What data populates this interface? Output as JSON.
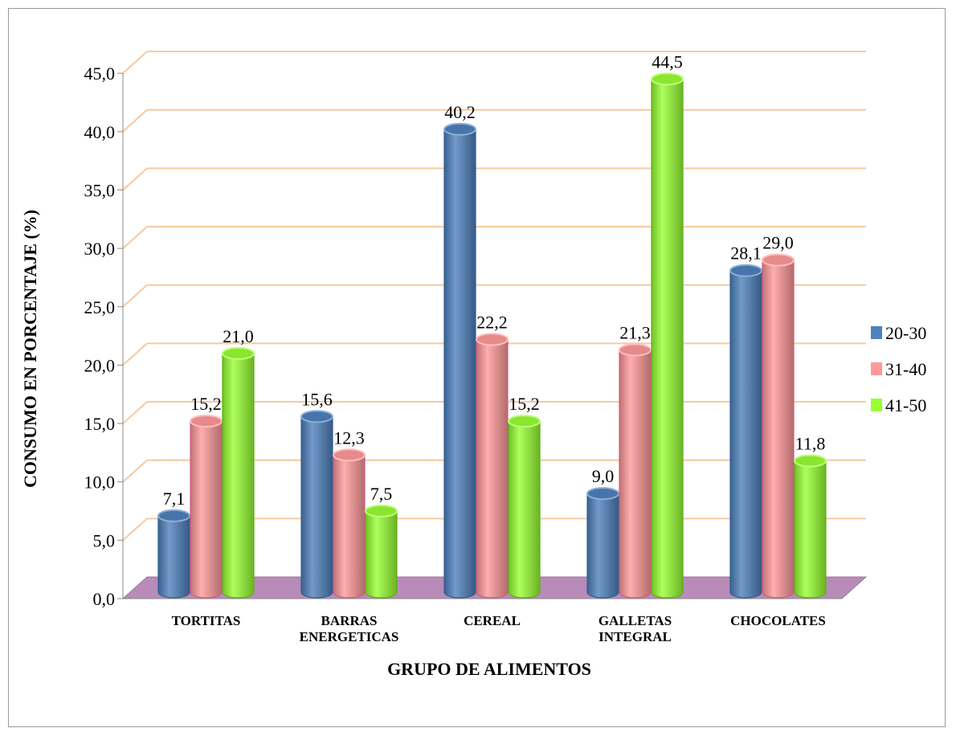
{
  "chart_data": {
    "type": "bar",
    "title": "",
    "xlabel": "GRUPO DE ALIMENTOS",
    "ylabel": "CONSUMO EN PORCENTAJE (%)",
    "ylim": [
      0,
      45
    ],
    "yticks": [
      "0,0",
      "5,0",
      "10,0",
      "15,0",
      "20,0",
      "25,0",
      "30,0",
      "35,0",
      "40,0",
      "45,0"
    ],
    "grid": true,
    "legend_position": "right",
    "categories": [
      [
        "TORTITAS"
      ],
      [
        "BARRAS",
        "ENERGETICAS"
      ],
      [
        "CEREAL"
      ],
      [
        "GALLETAS",
        "INTEGRAL"
      ],
      [
        "CHOCOLATES"
      ]
    ],
    "series": [
      {
        "name": "20-30",
        "color": "#4f81bd",
        "values": [
          7.1,
          15.6,
          40.2,
          9.0,
          28.1
        ],
        "labels": [
          "7,1",
          "15,6",
          "40,2",
          "9,0",
          "28,1"
        ]
      },
      {
        "name": "31-40",
        "color": "#ff9999",
        "values": [
          15.2,
          12.3,
          22.2,
          21.3,
          29.0
        ],
        "labels": [
          "15,2",
          "12,3",
          "22,2",
          "21,3",
          "29,0"
        ]
      },
      {
        "name": "41-50",
        "color": "#99ff33",
        "values": [
          21.0,
          7.5,
          15.2,
          44.5,
          11.8
        ],
        "labels": [
          "21,0",
          "7,5",
          "15,2",
          "44,5",
          "11,8"
        ]
      }
    ]
  }
}
